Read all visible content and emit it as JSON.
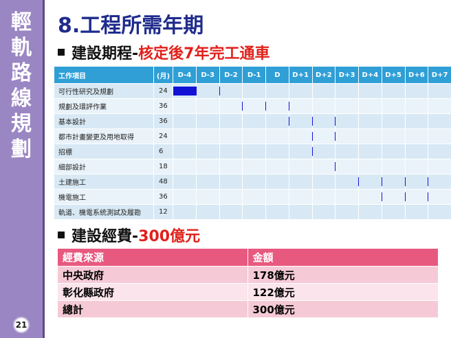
{
  "sidebar": {
    "title_chars": [
      "輕",
      "軌",
      "路",
      "線",
      "規",
      "劃"
    ],
    "page_number": "21"
  },
  "slide": {
    "title": "8.工程所需年期",
    "schedule_heading": {
      "prefix": "建設期程-",
      "highlight": "核定後7年完工通車"
    },
    "budget_heading": {
      "prefix": "建設經費-",
      "highlight": "300億元"
    }
  },
  "chart_data": {
    "type": "table",
    "headers": {
      "task": "工作項目",
      "months": "(月)"
    },
    "periods": [
      "D-4",
      "D-3",
      "D-2",
      "D-1",
      "D",
      "D+1",
      "D+2",
      "D+3",
      "D+4",
      "D+5",
      "D+6",
      "D+7"
    ],
    "tasks": [
      {
        "name": "可行性研究及規劃",
        "months": "24",
        "start": 0,
        "end": 2
      },
      {
        "name": "規劃及環評作業",
        "months": "36",
        "start": 2,
        "end": 5
      },
      {
        "name": "基本設計",
        "months": "36",
        "start": 4,
        "end": 7
      },
      {
        "name": "都市計畫變更及用地取得",
        "months": "24",
        "start": 5,
        "end": 7
      },
      {
        "name": "招標",
        "months": "6",
        "start": 5.45,
        "end": 6
      },
      {
        "name": "細部設計",
        "months": "18",
        "start": 6,
        "end": 7.5
      },
      {
        "name": "土建施工",
        "months": "48",
        "start": 7,
        "end": 11
      },
      {
        "name": "機電施工",
        "months": "36",
        "start": 8,
        "end": 11
      },
      {
        "name": "軌道、機電系統測試及履勘",
        "months": "12",
        "start": 11,
        "end": 12
      }
    ]
  },
  "budget_table": {
    "headers": [
      "經費來源",
      "金額"
    ],
    "rows": [
      [
        "中央政府",
        "178億元"
      ],
      [
        "彰化縣政府",
        "122億元"
      ],
      [
        "總計",
        "300億元"
      ]
    ]
  },
  "colors": {
    "sidebar": "#9b86c4",
    "title": "#1f2b8c",
    "highlight": "#e0211b",
    "gantt_header": "#2f9fd6",
    "gantt_bar": "#1212d6",
    "budget_header": "#e8597f"
  }
}
